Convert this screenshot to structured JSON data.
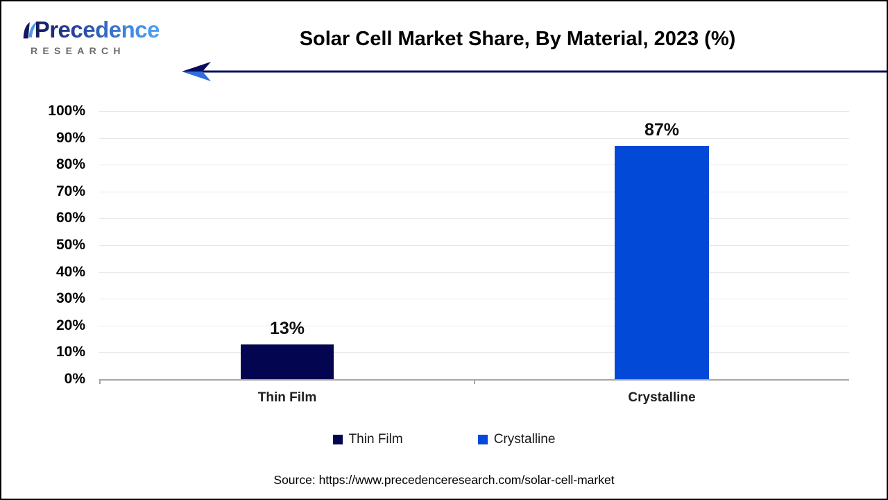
{
  "logo": {
    "brand": "Precedence",
    "subbrand": "R E S E A R C H",
    "subbrand_text": "RESEARCH",
    "brand_color_dark": "#151A5E",
    "brand_color_light": "#52A2EC",
    "subbrand_color": "#6B6B6B"
  },
  "header": {
    "arrow_color": "#0A0C5E",
    "arrowhead_top_color": "#0A0C5E",
    "arrowhead_bottom_color": "#2F6FDE"
  },
  "chart_data": {
    "type": "bar",
    "title": "Solar Cell Market Share, By Material, 2023 (%)",
    "categories": [
      "Thin Film",
      "Crystalline"
    ],
    "values": [
      13,
      87
    ],
    "value_labels": [
      "13%",
      "87%"
    ],
    "bar_colors": [
      "#040550",
      "#0349D8"
    ],
    "xlabel": "",
    "ylabel": "",
    "ylim": [
      0,
      100
    ],
    "yticks": [
      "0%",
      "10%",
      "20%",
      "30%",
      "40%",
      "50%",
      "60%",
      "70%",
      "80%",
      "90%",
      "100%"
    ],
    "grid": "horizontal",
    "gridline_color": "#E8E8E8",
    "axis_color": "#A6A6A6",
    "legend": {
      "position": "bottom",
      "entries": [
        {
          "label": "Thin Film",
          "color": "#040550"
        },
        {
          "label": "Crystalline",
          "color": "#0349D8"
        }
      ]
    }
  },
  "footer": {
    "source": "Source: https://www.precedenceresearch.com/solar-cell-market"
  }
}
